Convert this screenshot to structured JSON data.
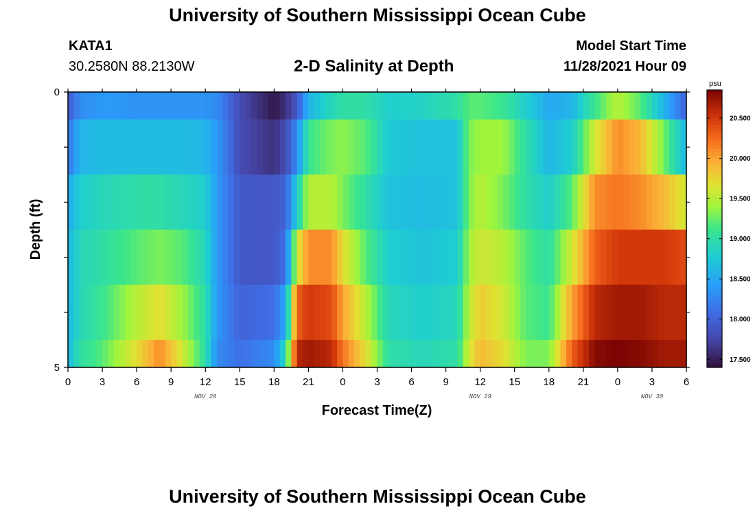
{
  "header": {
    "title": "University of Southern Mississippi Ocean Cube",
    "station": "KATA1",
    "coords": "30.2580N  88.2130W",
    "subtitle": "2-D Salinity at Depth",
    "start_label": "Model Start Time",
    "start_value": "11/28/2021 Hour 09"
  },
  "footer": {
    "title": "University of Southern Mississippi Ocean Cube"
  },
  "chart_data": {
    "type": "heatmap",
    "title": "2-D Salinity at Depth",
    "xlabel": "Forecast Time(Z)",
    "ylabel": "Depth (ft)",
    "x_range_hours": [
      0,
      54
    ],
    "x_tick_labels": [
      "0",
      "3",
      "6",
      "9",
      "12",
      "15",
      "18",
      "21",
      "0",
      "3",
      "6",
      "9",
      "12",
      "15",
      "18",
      "21",
      "0",
      "3",
      "6"
    ],
    "date_labels": [
      {
        "label": "NOV 28",
        "hour": 12
      },
      {
        "label": "NOV 29",
        "hour": 36
      },
      {
        "label": "NOV 30",
        "hour": 51
      }
    ],
    "y_tick_labels": [
      "0",
      "5"
    ],
    "ylim": [
      0,
      5
    ],
    "depth_levels": 5,
    "colorbar": {
      "unit": "psu",
      "min": 17.4,
      "max": 20.85,
      "ticks": [
        17.5,
        18.0,
        18.5,
        19.0,
        19.5,
        20.0,
        20.5
      ],
      "tick_labels": [
        "17.500",
        "18.000",
        "18.500",
        "19.000",
        "19.500",
        "20.000",
        "20.500"
      ]
    },
    "key_hours": [
      0,
      1,
      3,
      6,
      8,
      10,
      12,
      13,
      15,
      18,
      19,
      20,
      21,
      23,
      24,
      26,
      28,
      31,
      34,
      35,
      36,
      38,
      40,
      42,
      44,
      46,
      48,
      50,
      52,
      54
    ],
    "salinity_rows": [
      [
        17.9,
        18.3,
        18.4,
        18.35,
        18.35,
        18.35,
        18.35,
        18.3,
        17.8,
        17.45,
        17.6,
        17.9,
        18.6,
        18.9,
        19.0,
        19.0,
        18.8,
        18.85,
        19.0,
        19.2,
        19.2,
        19.1,
        18.8,
        18.5,
        18.6,
        19.1,
        19.5,
        19.2,
        18.6,
        18.0
      ],
      [
        18.1,
        18.6,
        18.65,
        18.65,
        18.65,
        18.65,
        18.6,
        18.4,
        17.8,
        17.6,
        17.8,
        18.3,
        19.1,
        19.3,
        19.35,
        19.2,
        18.75,
        18.7,
        18.7,
        19.3,
        19.4,
        19.4,
        19.0,
        18.6,
        18.8,
        19.6,
        20.1,
        19.9,
        19.3,
        18.6
      ],
      [
        18.5,
        18.8,
        18.9,
        19.0,
        19.0,
        18.9,
        18.8,
        18.4,
        17.9,
        17.9,
        18.0,
        18.8,
        19.5,
        19.5,
        19.3,
        19.0,
        18.7,
        18.65,
        18.7,
        19.3,
        19.5,
        19.3,
        19.0,
        18.8,
        19.2,
        20.1,
        20.2,
        20.1,
        19.9,
        19.6
      ],
      [
        18.6,
        18.9,
        19.0,
        19.2,
        19.3,
        19.2,
        18.9,
        18.4,
        17.9,
        17.9,
        18.1,
        19.6,
        20.1,
        20.1,
        19.7,
        19.2,
        18.8,
        18.7,
        18.8,
        19.4,
        19.6,
        19.5,
        19.2,
        19.0,
        19.6,
        20.3,
        20.5,
        20.5,
        20.5,
        20.4
      ],
      [
        18.6,
        18.9,
        19.1,
        19.5,
        19.7,
        19.4,
        19.0,
        18.4,
        18.0,
        18.1,
        18.5,
        20.3,
        20.5,
        20.4,
        20.0,
        19.5,
        18.9,
        18.8,
        18.9,
        19.5,
        19.8,
        19.6,
        19.2,
        19.1,
        20.0,
        20.6,
        20.7,
        20.7,
        20.6,
        20.6
      ],
      [
        18.6,
        19.0,
        19.2,
        19.7,
        20.1,
        19.6,
        19.0,
        18.3,
        18.1,
        18.3,
        18.9,
        20.6,
        20.7,
        20.6,
        20.2,
        19.7,
        19.0,
        18.9,
        19.0,
        19.6,
        19.9,
        19.7,
        19.3,
        19.3,
        20.3,
        20.8,
        20.85,
        20.8,
        20.7,
        20.7
      ]
    ]
  }
}
